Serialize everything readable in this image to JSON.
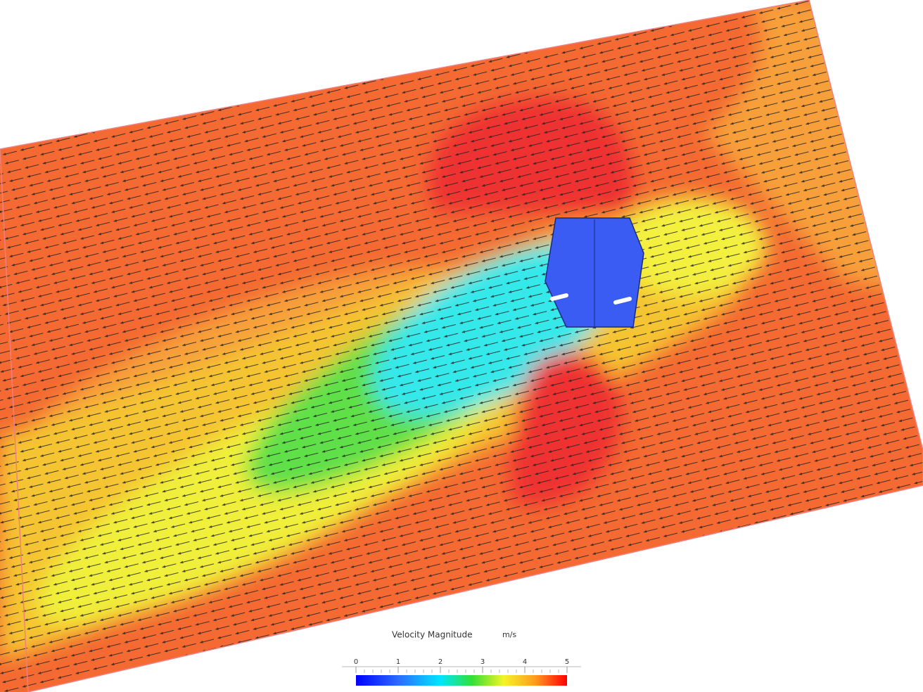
{
  "legend": {
    "title": "Velocity Magnitude",
    "unit": "m/s",
    "ticks": [
      0,
      1,
      2,
      3,
      4,
      5
    ]
  }
}
